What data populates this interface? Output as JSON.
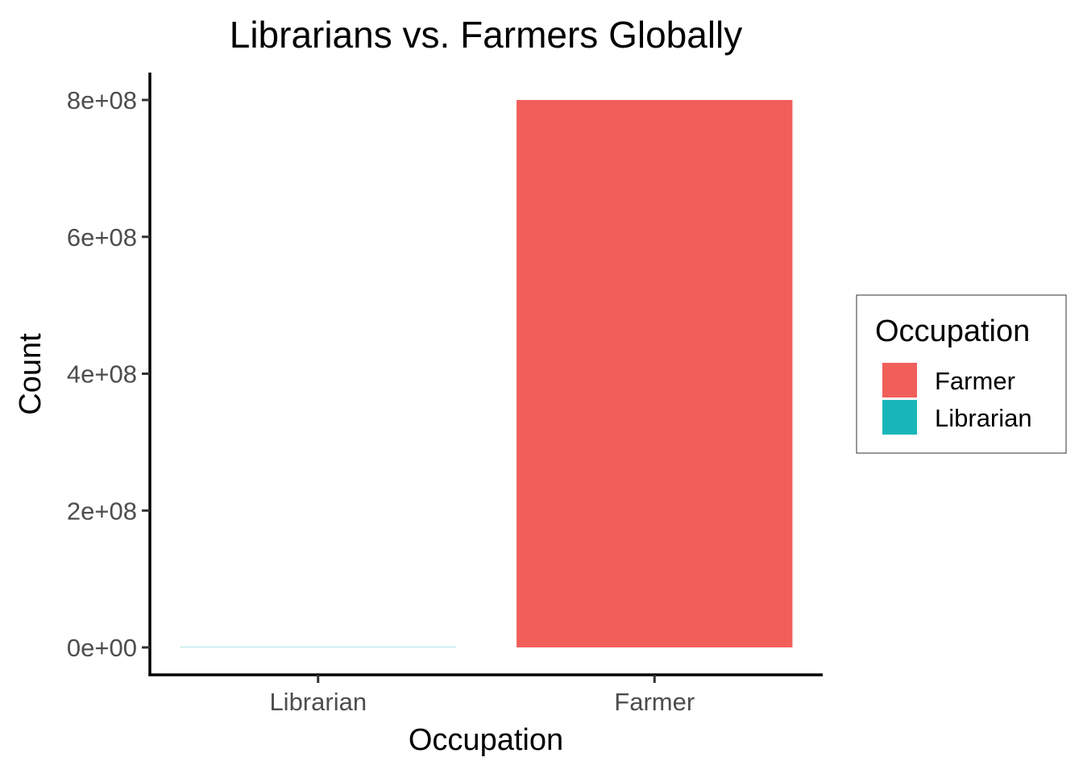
{
  "chart_data": {
    "type": "bar",
    "title": "Librarians vs. Farmers Globally",
    "xlabel": "Occupation",
    "ylabel": "Count",
    "categories": [
      "Librarian",
      "Farmer"
    ],
    "values": [
      350000,
      800000000
    ],
    "colors": [
      "#19B6B9",
      "#F15F5B"
    ],
    "ylim": [
      0,
      840000000
    ],
    "yticks": [
      0,
      200000000,
      400000000,
      600000000,
      800000000
    ],
    "ytick_labels": [
      "0e+00",
      "2e+08",
      "4e+08",
      "6e+08",
      "8e+08"
    ],
    "grid": false,
    "legend": {
      "title": "Occupation",
      "placement": "right",
      "items": [
        {
          "label": "Farmer",
          "color": "#F15F5B"
        },
        {
          "label": "Librarian",
          "color": "#19B6B9"
        }
      ]
    }
  }
}
